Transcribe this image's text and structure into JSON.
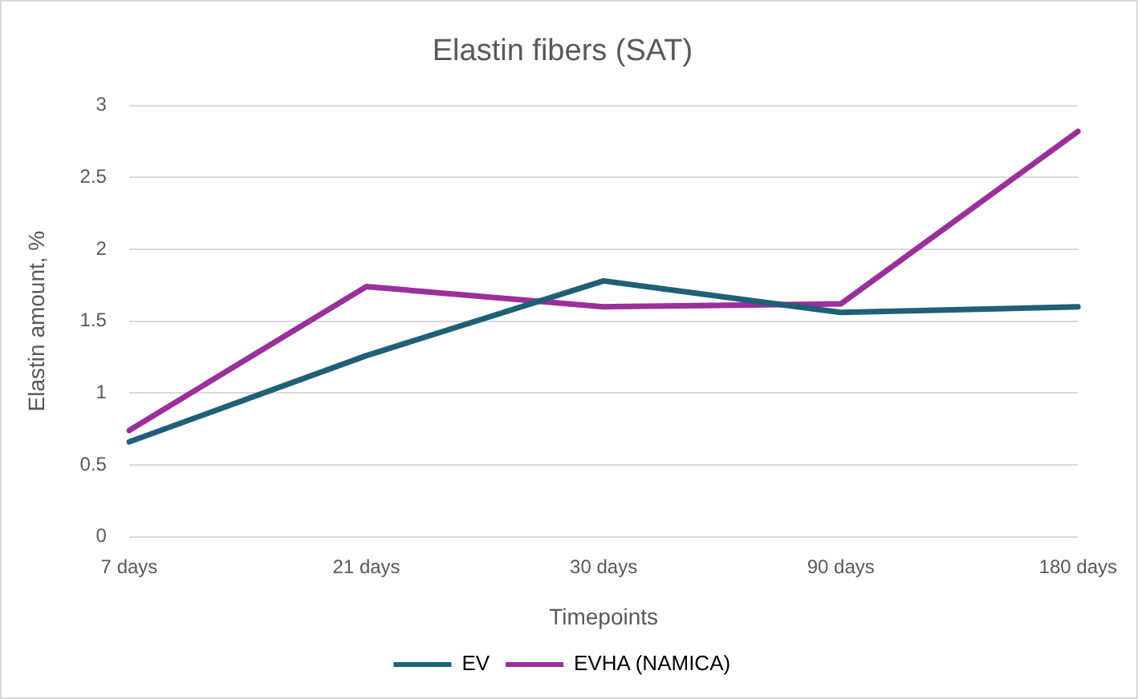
{
  "chart_data": {
    "type": "line",
    "title": "Elastin fibers (SAT)",
    "xlabel": "Timepoints",
    "ylabel": "Elastin amount, %",
    "categories": [
      "7 days",
      "21 days",
      "30 days",
      "90 days",
      "180 days"
    ],
    "series": [
      {
        "name": "EV",
        "color": "#1f6078",
        "values": [
          0.66,
          1.26,
          1.78,
          1.56,
          1.6
        ]
      },
      {
        "name": "EVHA (NAMICA)",
        "color": "#9b2f9b",
        "values": [
          0.74,
          1.74,
          1.6,
          1.62,
          2.82
        ]
      }
    ],
    "ylim": [
      0,
      3
    ],
    "yticks": [
      0,
      0.5,
      1,
      1.5,
      2,
      2.5,
      3
    ],
    "grid": "y",
    "legend": "bottom",
    "marker": "none",
    "line_style": "solid"
  }
}
